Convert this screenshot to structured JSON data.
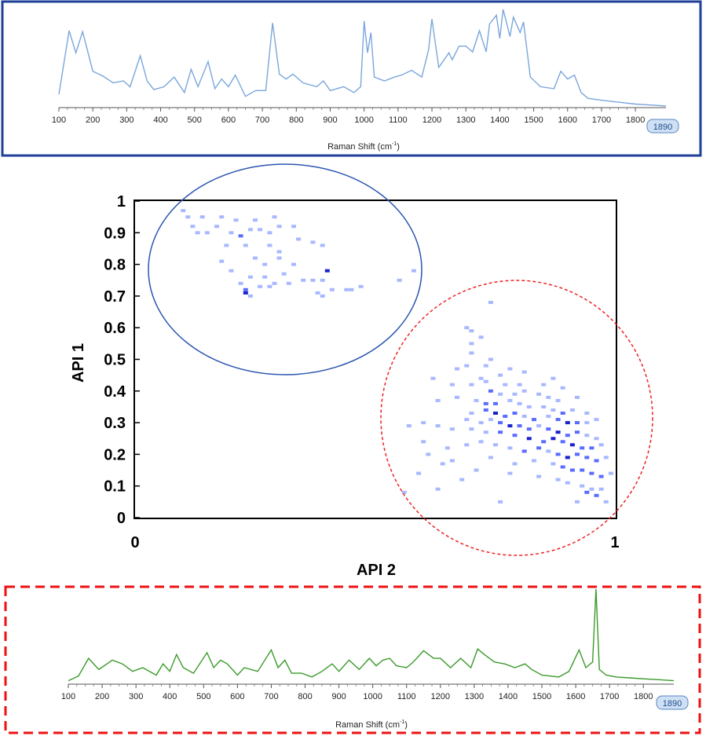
{
  "colors": {
    "top_frame": "#1f3f99",
    "top_spectrum": "#7aa6dc",
    "bottom_frame": "#ee1111",
    "bottom_spectrum": "#3a9a2a",
    "pixel_light": "#a8b8ff",
    "pixel_mid": "#5a6cff",
    "pixel_dark": "#1a22cc",
    "circle_blue": "#2a55b0",
    "circle_red": "#ee2222",
    "badge_fill": "#cfe0f5"
  },
  "top_spectrum": {
    "xlabel": "Raman Shift (cm",
    "xlabel_sup": "-1",
    "xlabel_close": ")",
    "ticks": [
      "100",
      "200",
      "300",
      "400",
      "500",
      "600",
      "700",
      "800",
      "900",
      "1000",
      "1100",
      "1200",
      "1300",
      "1400",
      "1500",
      "1600",
      "1700",
      "1800"
    ],
    "end_badge": "1890"
  },
  "bottom_spectrum": {
    "xlabel": "Raman Shift (cm",
    "xlabel_sup": "-1",
    "xlabel_close": ")",
    "ticks": [
      "100",
      "200",
      "300",
      "400",
      "500",
      "600",
      "700",
      "800",
      "900",
      "1000",
      "1100",
      "1200",
      "1300",
      "1400",
      "1500",
      "1600",
      "1700",
      "1800"
    ],
    "end_badge": "1890"
  },
  "scatter": {
    "xlabel": "API 2",
    "ylabel": "API 1",
    "x_ticks": [
      "0",
      "1"
    ],
    "y_ticks": [
      "1",
      "0.9",
      "0.8",
      "0.7",
      "0.6",
      "0.5",
      "0.4",
      "0.3",
      "0.2",
      "0.1",
      "0"
    ]
  },
  "chart_data": [
    {
      "type": "line",
      "title": "",
      "xlabel": "Raman Shift (cm-1)",
      "ylabel": "",
      "xlim": [
        100,
        1890
      ],
      "series": [
        {
          "x": [
            100,
            130,
            150,
            170,
            200,
            230,
            260,
            290,
            310,
            340,
            360,
            380,
            410,
            440,
            470,
            490,
            510,
            540,
            560,
            580,
            600,
            620,
            650,
            680,
            710,
            730,
            750,
            770,
            790,
            820,
            860,
            880,
            900,
            940,
            970,
            990,
            1000,
            1010,
            1020,
            1030,
            1060,
            1090,
            1110,
            1140,
            1170,
            1190,
            1200,
            1220,
            1250,
            1260,
            1280,
            1300,
            1320,
            1340,
            1360,
            1370,
            1390,
            1400,
            1410,
            1430,
            1440,
            1460,
            1470,
            1490,
            1520,
            1560,
            1580,
            1600,
            1620,
            1640,
            1660,
            1700,
            1750,
            1800,
            1850,
            1890
          ],
          "y": [
            0.12,
            0.78,
            0.55,
            0.77,
            0.36,
            0.31,
            0.24,
            0.26,
            0.2,
            0.52,
            0.26,
            0.17,
            0.2,
            0.3,
            0.14,
            0.38,
            0.2,
            0.46,
            0.18,
            0.28,
            0.2,
            0.32,
            0.1,
            0.16,
            0.16,
            0.86,
            0.33,
            0.28,
            0.33,
            0.24,
            0.2,
            0.26,
            0.16,
            0.2,
            0.14,
            0.2,
            0.88,
            0.55,
            0.76,
            0.3,
            0.26,
            0.3,
            0.32,
            0.37,
            0.3,
            0.58,
            0.9,
            0.4,
            0.55,
            0.48,
            0.62,
            0.62,
            0.56,
            0.78,
            0.56,
            0.85,
            0.94,
            0.7,
            1.0,
            0.72,
            0.92,
            0.76,
            0.87,
            0.3,
            0.2,
            0.18,
            0.36,
            0.28,
            0.32,
            0.14,
            0.08,
            0.06,
            0.04,
            0.02,
            0.01,
            0.0
          ]
        }
      ]
    },
    {
      "type": "heatmap",
      "title": "",
      "xlabel": "API 2",
      "ylabel": "API 1",
      "xlim": [
        0,
        1
      ],
      "ylim": [
        0,
        1
      ],
      "points": [
        [
          0.1,
          0.97,
          1
        ],
        [
          0.11,
          0.95,
          1
        ],
        [
          0.14,
          0.95,
          1
        ],
        [
          0.18,
          0.95,
          1
        ],
        [
          0.21,
          0.94,
          1
        ],
        [
          0.25,
          0.94,
          1
        ],
        [
          0.29,
          0.95,
          1
        ],
        [
          0.12,
          0.92,
          1
        ],
        [
          0.13,
          0.9,
          1
        ],
        [
          0.15,
          0.9,
          1
        ],
        [
          0.17,
          0.92,
          1
        ],
        [
          0.2,
          0.9,
          1
        ],
        [
          0.22,
          0.89,
          2
        ],
        [
          0.24,
          0.91,
          1
        ],
        [
          0.26,
          0.91,
          1
        ],
        [
          0.28,
          0.9,
          1
        ],
        [
          0.3,
          0.92,
          1
        ],
        [
          0.33,
          0.92,
          1
        ],
        [
          0.19,
          0.86,
          1
        ],
        [
          0.23,
          0.86,
          1
        ],
        [
          0.28,
          0.86,
          1
        ],
        [
          0.3,
          0.84,
          1
        ],
        [
          0.34,
          0.88,
          1
        ],
        [
          0.37,
          0.87,
          1
        ],
        [
          0.39,
          0.86,
          1
        ],
        [
          0.18,
          0.81,
          1
        ],
        [
          0.25,
          0.82,
          1
        ],
        [
          0.27,
          0.8,
          1
        ],
        [
          0.3,
          0.82,
          1
        ],
        [
          0.33,
          0.8,
          1
        ],
        [
          0.2,
          0.78,
          1
        ],
        [
          0.24,
          0.76,
          1
        ],
        [
          0.27,
          0.76,
          1
        ],
        [
          0.29,
          0.74,
          1
        ],
        [
          0.31,
          0.77,
          1
        ],
        [
          0.35,
          0.75,
          1
        ],
        [
          0.37,
          0.75,
          1
        ],
        [
          0.32,
          0.74,
          1
        ],
        [
          0.26,
          0.73,
          1
        ],
        [
          0.28,
          0.73,
          1
        ],
        [
          0.22,
          0.74,
          1
        ],
        [
          0.23,
          0.72,
          2
        ],
        [
          0.23,
          0.71,
          3
        ],
        [
          0.24,
          0.7,
          1
        ],
        [
          0.39,
          0.75,
          1
        ],
        [
          0.4,
          0.78,
          3
        ],
        [
          0.41,
          0.72,
          1
        ],
        [
          0.44,
          0.72,
          1
        ],
        [
          0.38,
          0.71,
          1
        ],
        [
          0.39,
          0.7,
          1
        ],
        [
          0.45,
          0.72,
          1
        ],
        [
          0.47,
          0.73,
          1
        ],
        [
          0.55,
          0.75,
          1
        ],
        [
          0.58,
          0.78,
          1
        ],
        [
          0.74,
          0.68,
          1
        ],
        [
          0.69,
          0.6,
          1
        ],
        [
          0.7,
          0.59,
          1
        ],
        [
          0.72,
          0.57,
          1
        ],
        [
          0.7,
          0.55,
          1
        ],
        [
          0.7,
          0.52,
          1
        ],
        [
          0.74,
          0.5,
          1
        ],
        [
          0.69,
          0.48,
          1
        ],
        [
          0.67,
          0.47,
          1
        ],
        [
          0.73,
          0.48,
          1
        ],
        [
          0.78,
          0.47,
          1
        ],
        [
          0.81,
          0.46,
          1
        ],
        [
          0.76,
          0.45,
          1
        ],
        [
          0.72,
          0.44,
          1
        ],
        [
          0.62,
          0.44,
          1
        ],
        [
          0.66,
          0.42,
          1
        ],
        [
          0.7,
          0.42,
          1
        ],
        [
          0.73,
          0.43,
          1
        ],
        [
          0.77,
          0.42,
          1
        ],
        [
          0.8,
          0.42,
          1
        ],
        [
          0.85,
          0.42,
          1
        ],
        [
          0.87,
          0.44,
          1
        ],
        [
          0.89,
          0.41,
          1
        ],
        [
          0.74,
          0.4,
          2
        ],
        [
          0.76,
          0.39,
          1
        ],
        [
          0.79,
          0.39,
          1
        ],
        [
          0.81,
          0.4,
          1
        ],
        [
          0.84,
          0.39,
          1
        ],
        [
          0.86,
          0.38,
          1
        ],
        [
          0.88,
          0.37,
          1
        ],
        [
          0.92,
          0.38,
          1
        ],
        [
          0.63,
          0.37,
          1
        ],
        [
          0.67,
          0.38,
          1
        ],
        [
          0.71,
          0.37,
          1
        ],
        [
          0.73,
          0.36,
          2
        ],
        [
          0.75,
          0.36,
          2
        ],
        [
          0.78,
          0.37,
          1
        ],
        [
          0.8,
          0.36,
          1
        ],
        [
          0.82,
          0.35,
          1
        ],
        [
          0.85,
          0.35,
          1
        ],
        [
          0.87,
          0.34,
          1
        ],
        [
          0.89,
          0.33,
          2
        ],
        [
          0.91,
          0.34,
          1
        ],
        [
          0.94,
          0.33,
          1
        ],
        [
          0.7,
          0.33,
          1
        ],
        [
          0.73,
          0.34,
          2
        ],
        [
          0.75,
          0.33,
          3
        ],
        [
          0.77,
          0.32,
          2
        ],
        [
          0.79,
          0.33,
          2
        ],
        [
          0.81,
          0.32,
          1
        ],
        [
          0.83,
          0.31,
          2
        ],
        [
          0.86,
          0.32,
          1
        ],
        [
          0.88,
          0.31,
          2
        ],
        [
          0.9,
          0.3,
          3
        ],
        [
          0.92,
          0.3,
          2
        ],
        [
          0.94,
          0.3,
          1
        ],
        [
          0.96,
          0.31,
          1
        ],
        [
          0.69,
          0.31,
          1
        ],
        [
          0.72,
          0.3,
          1
        ],
        [
          0.74,
          0.31,
          1
        ],
        [
          0.76,
          0.3,
          2
        ],
        [
          0.78,
          0.29,
          3
        ],
        [
          0.8,
          0.29,
          2
        ],
        [
          0.82,
          0.28,
          2
        ],
        [
          0.84,
          0.29,
          1
        ],
        [
          0.86,
          0.28,
          2
        ],
        [
          0.88,
          0.27,
          3
        ],
        [
          0.9,
          0.26,
          2
        ],
        [
          0.92,
          0.27,
          2
        ],
        [
          0.94,
          0.26,
          1
        ],
        [
          0.96,
          0.25,
          1
        ],
        [
          0.57,
          0.29,
          1
        ],
        [
          0.6,
          0.3,
          1
        ],
        [
          0.63,
          0.29,
          1
        ],
        [
          0.66,
          0.28,
          1
        ],
        [
          0.7,
          0.28,
          1
        ],
        [
          0.73,
          0.27,
          1
        ],
        [
          0.76,
          0.27,
          2
        ],
        [
          0.79,
          0.26,
          2
        ],
        [
          0.82,
          0.25,
          3
        ],
        [
          0.85,
          0.24,
          2
        ],
        [
          0.87,
          0.25,
          3
        ],
        [
          0.89,
          0.24,
          2
        ],
        [
          0.91,
          0.23,
          3
        ],
        [
          0.93,
          0.22,
          2
        ],
        [
          0.95,
          0.22,
          2
        ],
        [
          0.97,
          0.23,
          1
        ],
        [
          0.6,
          0.24,
          1
        ],
        [
          0.65,
          0.22,
          1
        ],
        [
          0.69,
          0.23,
          1
        ],
        [
          0.72,
          0.24,
          1
        ],
        [
          0.75,
          0.23,
          1
        ],
        [
          0.78,
          0.22,
          1
        ],
        [
          0.81,
          0.21,
          2
        ],
        [
          0.84,
          0.22,
          2
        ],
        [
          0.86,
          0.21,
          1
        ],
        [
          0.88,
          0.2,
          2
        ],
        [
          0.9,
          0.19,
          3
        ],
        [
          0.92,
          0.2,
          2
        ],
        [
          0.94,
          0.19,
          2
        ],
        [
          0.96,
          0.18,
          2
        ],
        [
          0.98,
          0.19,
          1
        ],
        [
          0.61,
          0.2,
          1
        ],
        [
          0.66,
          0.18,
          1
        ],
        [
          0.74,
          0.19,
          1
        ],
        [
          0.79,
          0.17,
          1
        ],
        [
          0.83,
          0.18,
          1
        ],
        [
          0.87,
          0.17,
          1
        ],
        [
          0.89,
          0.16,
          2
        ],
        [
          0.91,
          0.15,
          2
        ],
        [
          0.93,
          0.15,
          2
        ],
        [
          0.95,
          0.14,
          2
        ],
        [
          0.97,
          0.13,
          2
        ],
        [
          0.99,
          0.14,
          1
        ],
        [
          0.71,
          0.15,
          1
        ],
        [
          0.78,
          0.14,
          1
        ],
        [
          0.84,
          0.13,
          1
        ],
        [
          0.88,
          0.12,
          1
        ],
        [
          0.9,
          0.11,
          1
        ],
        [
          0.93,
          0.1,
          1
        ],
        [
          0.94,
          0.08,
          2
        ],
        [
          0.96,
          0.07,
          2
        ],
        [
          0.95,
          0.09,
          1
        ],
        [
          0.97,
          0.09,
          1
        ],
        [
          0.98,
          0.05,
          1
        ],
        [
          0.92,
          0.05,
          1
        ],
        [
          0.68,
          0.12,
          1
        ],
        [
          0.63,
          0.09,
          1
        ],
        [
          0.76,
          0.05,
          1
        ],
        [
          0.56,
          0.08,
          1
        ],
        [
          0.59,
          0.14,
          1
        ],
        [
          0.64,
          0.17,
          1
        ]
      ]
    },
    {
      "type": "line",
      "title": "",
      "xlabel": "Raman Shift (cm-1)",
      "ylabel": "",
      "xlim": [
        100,
        1890
      ],
      "series": [
        {
          "x": [
            100,
            130,
            160,
            190,
            230,
            260,
            290,
            320,
            360,
            380,
            400,
            420,
            440,
            470,
            510,
            530,
            550,
            570,
            600,
            620,
            660,
            700,
            720,
            740,
            760,
            790,
            820,
            850,
            880,
            900,
            930,
            960,
            990,
            1010,
            1030,
            1050,
            1070,
            1100,
            1120,
            1150,
            1180,
            1200,
            1230,
            1260,
            1290,
            1310,
            1330,
            1360,
            1390,
            1420,
            1450,
            1470,
            1500,
            1550,
            1580,
            1610,
            1630,
            1650,
            1660,
            1670,
            1690,
            1720,
            1760,
            1800,
            1850,
            1890
          ],
          "y": [
            0.02,
            0.07,
            0.26,
            0.14,
            0.24,
            0.2,
            0.12,
            0.16,
            0.08,
            0.2,
            0.12,
            0.3,
            0.16,
            0.1,
            0.32,
            0.16,
            0.24,
            0.2,
            0.08,
            0.16,
            0.12,
            0.35,
            0.16,
            0.24,
            0.1,
            0.1,
            0.06,
            0.12,
            0.2,
            0.12,
            0.24,
            0.14,
            0.26,
            0.18,
            0.24,
            0.26,
            0.18,
            0.16,
            0.22,
            0.34,
            0.26,
            0.26,
            0.16,
            0.26,
            0.16,
            0.36,
            0.3,
            0.22,
            0.2,
            0.16,
            0.2,
            0.14,
            0.08,
            0.06,
            0.12,
            0.35,
            0.16,
            0.22,
            1.0,
            0.14,
            0.08,
            0.06,
            0.05,
            0.04,
            0.03,
            0.02
          ]
        }
      ]
    }
  ]
}
